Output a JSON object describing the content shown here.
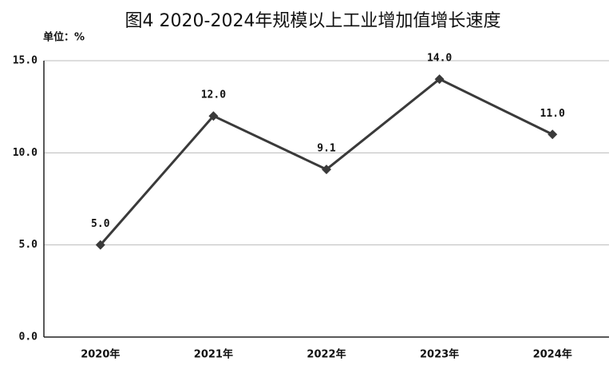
{
  "chart_data": {
    "type": "line",
    "title": "图4  2020-2024年规模以上工业增加值增长速度",
    "y_axis_label": "单位：%",
    "categories": [
      "2020年",
      "2021年",
      "2022年",
      "2023年",
      "2024年"
    ],
    "series": [
      {
        "name": "增长速度",
        "color": "#3a3a3a",
        "values": [
          5.0,
          12.0,
          9.1,
          14.0,
          11.0
        ],
        "value_labels": [
          "5.0",
          "12.0",
          "9.1",
          "14.0",
          "11.0"
        ]
      }
    ],
    "ylim": [
      0,
      15
    ],
    "yticks": [
      {
        "value": 0,
        "label": "0.0"
      },
      {
        "value": 5,
        "label": "5.0"
      },
      {
        "value": 10,
        "label": "10.0"
      },
      {
        "value": 15,
        "label": "15.0"
      }
    ],
    "grid": true
  }
}
